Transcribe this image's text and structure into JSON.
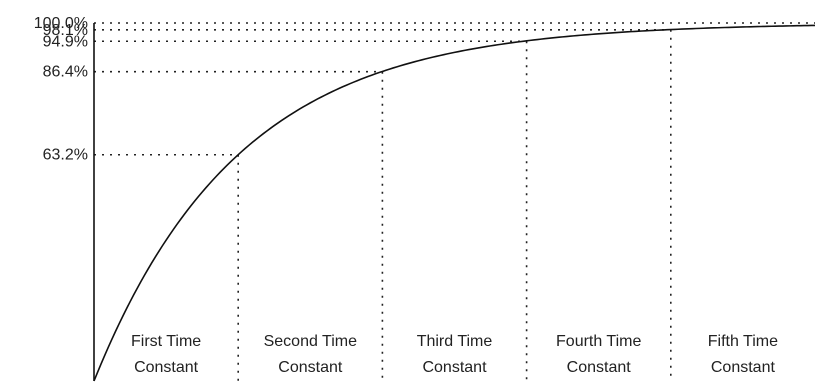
{
  "chart_data": {
    "type": "line",
    "title": "",
    "xlabel": "",
    "ylabel": "",
    "x": [
      0,
      1,
      2,
      3,
      4,
      5
    ],
    "series": [
      {
        "values": [
          0,
          63.2,
          86.4,
          94.9,
          98.1,
          100.0
        ]
      }
    ],
    "ylim": [
      0,
      100
    ],
    "xlim": [
      0,
      5
    ],
    "grid": false,
    "reference_levels": [
      {
        "x": 1,
        "y": 63.2,
        "label": "63.2%"
      },
      {
        "x": 2,
        "y": 86.4,
        "label": "86.4%"
      },
      {
        "x": 3,
        "y": 94.9,
        "label": "94.9%"
      },
      {
        "x": 4,
        "y": 98.1,
        "label": "98.1%"
      },
      {
        "x": 5,
        "y": 100.0,
        "label": "100.0%"
      }
    ],
    "segments": [
      {
        "line1": "First Time",
        "line2": "Constant"
      },
      {
        "line1": "Second Time",
        "line2": "Constant"
      },
      {
        "line1": "Third Time",
        "line2": "Constant"
      },
      {
        "line1": "Fourth Time",
        "line2": "Constant"
      },
      {
        "line1": "Fifth Time",
        "line2": "Constant"
      }
    ],
    "colors": {
      "line": "#111111",
      "text": "#222222"
    }
  }
}
